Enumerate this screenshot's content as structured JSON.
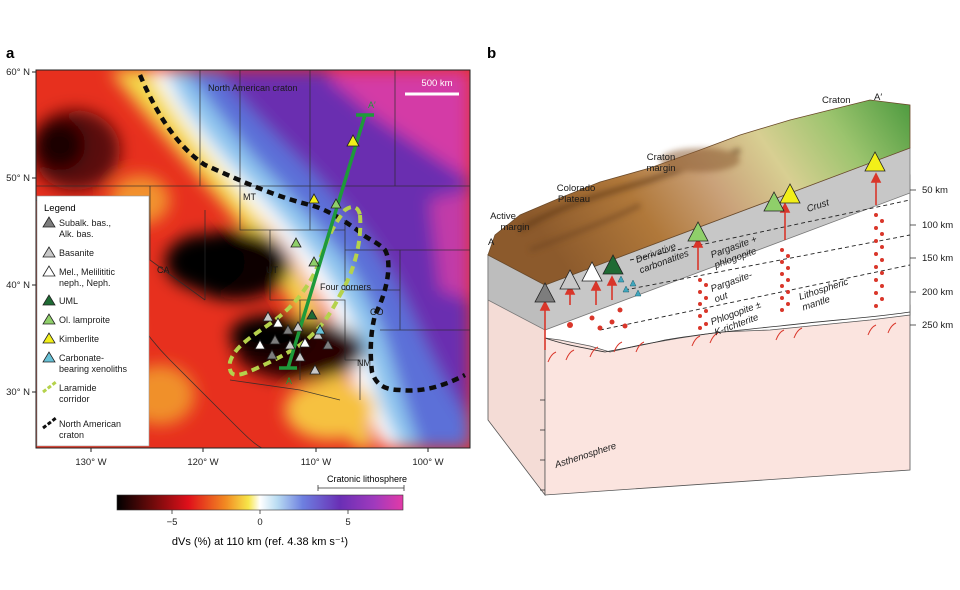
{
  "panel_a": {
    "label": "a",
    "lat_ticks": [
      "60° N",
      "50° N",
      "40° N",
      "30° N"
    ],
    "lon_ticks": [
      "130° W",
      "120° W",
      "110° W",
      "100° W"
    ],
    "scale_bar": "500 km",
    "map_labels": {
      "craton": "North American craton",
      "mt": "MT",
      "ca": "CA",
      "ut": "UT",
      "co": "CO",
      "nm": "NM",
      "four_corners": "Four corners",
      "a_start": "A",
      "a_end": "A′"
    },
    "legend": {
      "title": "Legend",
      "items": [
        {
          "label": "Subalk. bas., Alk. bas.",
          "color": "#7d7d7d",
          "kind": "triangle"
        },
        {
          "label": "Basanite",
          "color": "#c8c8c8",
          "kind": "triangle"
        },
        {
          "label": "Mel., Melilititic neph., Neph.",
          "color": "#ffffff",
          "kind": "triangle"
        },
        {
          "label": "UML",
          "color": "#1f6b34",
          "kind": "triangle"
        },
        {
          "label": "Ol. lamproite",
          "color": "#8fcf6a",
          "kind": "triangle"
        },
        {
          "label": "Kimberlite",
          "color": "#f2ef19",
          "kind": "triangle"
        },
        {
          "label": "Carbonate-bearing xenoliths",
          "color": "#67c1d6",
          "kind": "triangle"
        },
        {
          "label": "Laramide corridor",
          "color": "#b5d24c",
          "kind": "dash"
        },
        {
          "label": "North American craton",
          "color": "#111111",
          "kind": "dash"
        }
      ]
    },
    "cratonic_label": "Cratonic lithosphere",
    "colorbar": {
      "ticks": [
        "−5",
        "0",
        "5"
      ],
      "caption": "dVs (%) at 110 km (ref. 4.38 km s⁻¹)"
    }
  },
  "panel_b": {
    "label": "b",
    "labels": {
      "a": "A",
      "a_prime": "A′",
      "active_margin": "Active margin",
      "colorado_plateau": "Colorado Plateau",
      "craton_margin": "Craton margin",
      "craton": "Craton",
      "crust": "Crust",
      "derivative": "Derivative carbonatites",
      "pargasite_phlogopite": "Pargasite + phlogopite",
      "pargasite_out": "Pargasite-out",
      "phlogopite_k": "Phlogopite ± K-richterite",
      "lithospheric_mantle": "Lithospheric mantle",
      "asthenosphere": "Asthenosphere"
    },
    "depth_ticks": [
      "50 km",
      "100 km",
      "150 km",
      "200 km",
      "250 km"
    ]
  }
}
